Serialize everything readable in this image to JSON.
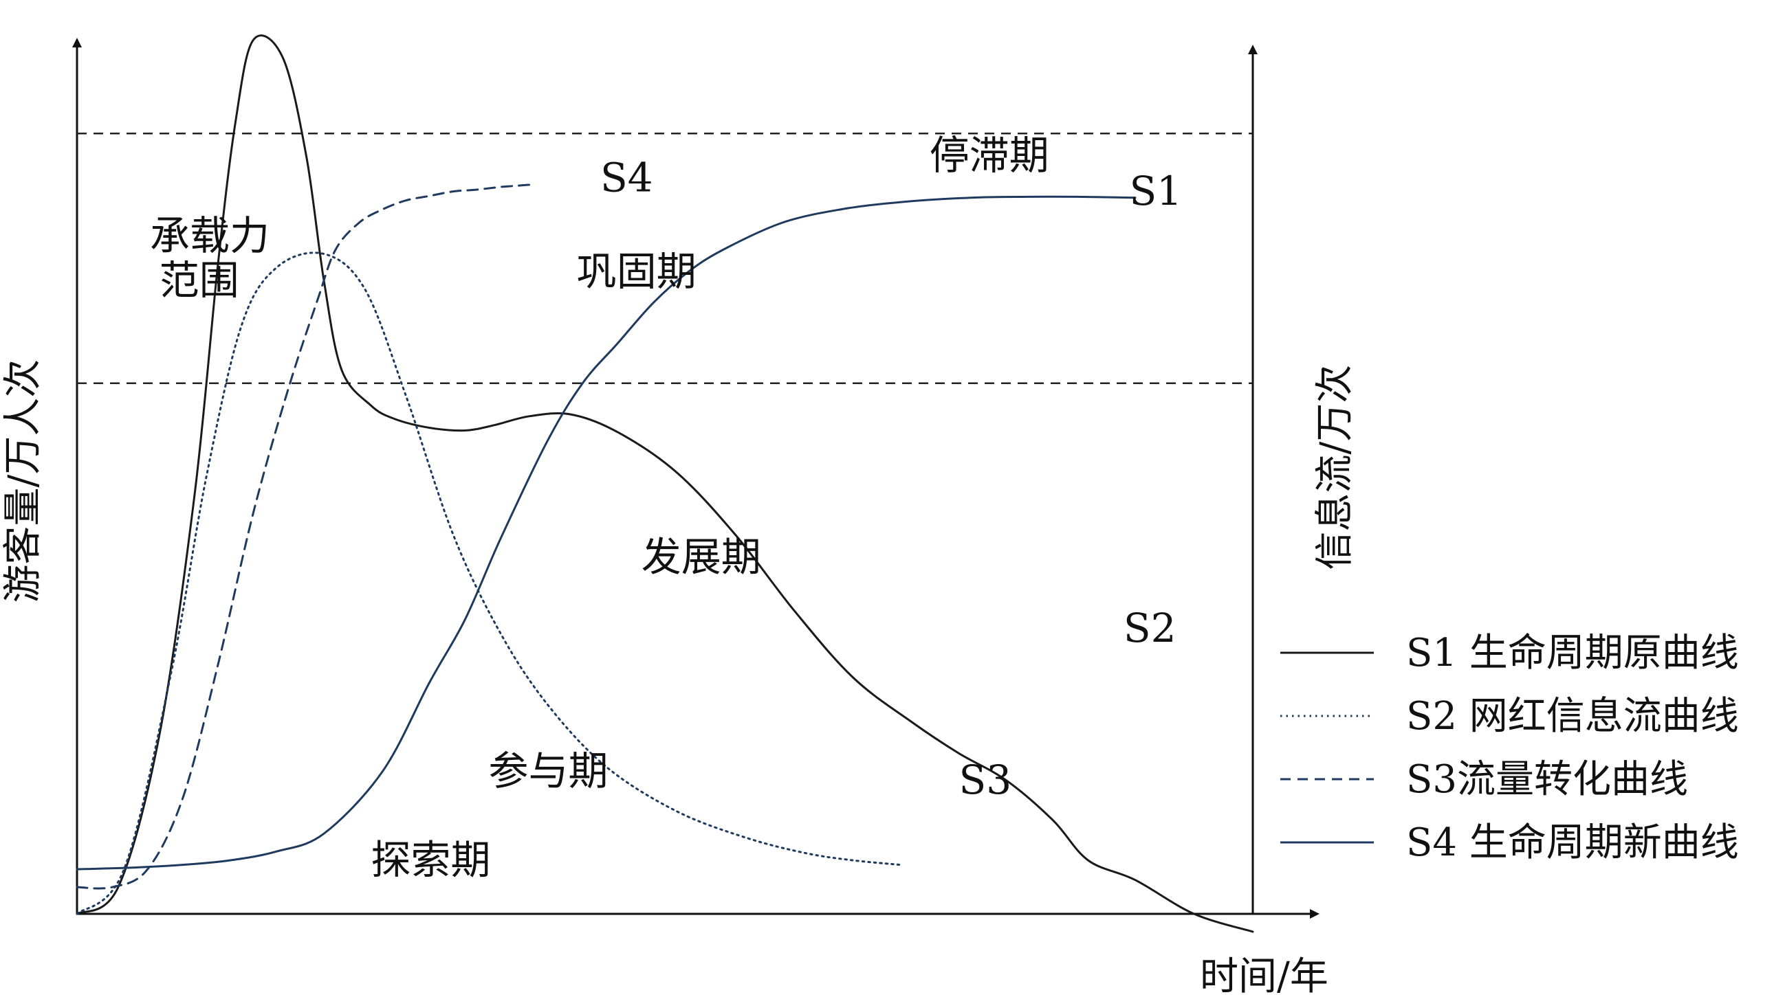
{
  "chart_data": {
    "type": "line",
    "title": "",
    "xlabel": "时间/年",
    "ylabel_left": "游客量/万人次",
    "ylabel_right": "信息流/万次",
    "xlim": [
      0,
      100
    ],
    "ylim": [
      0,
      100
    ],
    "grid": false,
    "legend_position": "right",
    "colors": {
      "black": "#1a1a1a",
      "navy": "#1f3a5f"
    },
    "reference_lines": [
      {
        "y": 87.5,
        "style": "dashed"
      },
      {
        "y": 59.5,
        "style": "dashed"
      }
    ],
    "series": [
      {
        "name": "S1 生命周期原曲线",
        "style": "solid",
        "color": "#1a1a1a",
        "x": [
          0,
          3.5,
          7,
          10,
          12,
          13.5,
          15,
          17.5,
          19.5,
          21,
          22.5,
          25,
          27,
          30,
          33,
          35.5,
          38.5,
          42,
          46,
          51,
          56,
          61,
          66,
          71,
          75,
          79,
          83,
          86,
          90,
          95,
          100
        ],
        "y": [
          0,
          3,
          20,
          47,
          73,
          89,
          98,
          96,
          85,
          71,
          61,
          57,
          55.5,
          54.5,
          54.2,
          54.8,
          55.8,
          56,
          54,
          49.5,
          42.5,
          34,
          26.5,
          21.5,
          18,
          15,
          10.5,
          6,
          3.8,
          0,
          -2
        ]
      },
      {
        "name": "S2 网红信息流曲线",
        "style": "dotted",
        "color": "#1f3a5f",
        "x": [
          0,
          4,
          8,
          11,
          14,
          17,
          21,
          24.5,
          28,
          32,
          36,
          40,
          45,
          51,
          57,
          62,
          66,
          70
        ],
        "y": [
          0,
          5,
          27,
          49,
          66,
          72.5,
          74,
          70,
          58,
          42.5,
          31.5,
          23.5,
          16.5,
          11.5,
          8.5,
          6.8,
          6,
          5.5
        ]
      },
      {
        "name": "S3流量转化曲线",
        "style": "dashed",
        "color": "#1f3a5f",
        "x": [
          0,
          3,
          6,
          9,
          12,
          15,
          18,
          20.5,
          22,
          24,
          26,
          28,
          30,
          32,
          34,
          36,
          37,
          38,
          39
        ],
        "y": [
          3,
          3,
          5,
          13,
          28,
          45,
          59,
          69,
          74.5,
          77.5,
          79,
          80,
          80.5,
          81,
          81.2,
          81.5,
          81.6,
          81.7,
          81.8
        ]
      },
      {
        "name": "S4 生命周期新曲线",
        "style": "solid",
        "color": "#1f3a5f",
        "x": [
          0,
          5,
          9,
          13,
          17,
          21,
          26,
          30,
          33,
          36,
          40,
          43,
          46,
          49,
          52,
          55,
          60,
          65,
          70,
          76,
          81,
          85,
          90
        ],
        "y": [
          5,
          5.2,
          5.5,
          6,
          7,
          9,
          16,
          26,
          33,
          42,
          53,
          59.5,
          64,
          68.5,
          72,
          74.5,
          77.5,
          79,
          79.8,
          80.3,
          80.4,
          80.4,
          80.3
        ]
      }
    ],
    "annotations": [
      {
        "text": "承载力",
        "x": 6.2,
        "y": 74.5
      },
      {
        "text": "范围",
        "x": 7,
        "y": 69.5
      },
      {
        "text": "停滞期",
        "x": 72.5,
        "y": 83.5
      },
      {
        "text": "巩固期",
        "x": 42.5,
        "y": 70.5
      },
      {
        "text": "发展期",
        "x": 48,
        "y": 38.5
      },
      {
        "text": "参与期",
        "x": 35,
        "y": 14.5
      },
      {
        "text": "探索期",
        "x": 25,
        "y": 4.5
      },
      {
        "text": "S1",
        "x": 89.5,
        "y": 79.5
      },
      {
        "text": "S2",
        "x": 89,
        "y": 30.5
      },
      {
        "text": "S3",
        "x": 75,
        "y": 13.5
      },
      {
        "text": "S4",
        "x": 44.5,
        "y": 81
      }
    ]
  }
}
